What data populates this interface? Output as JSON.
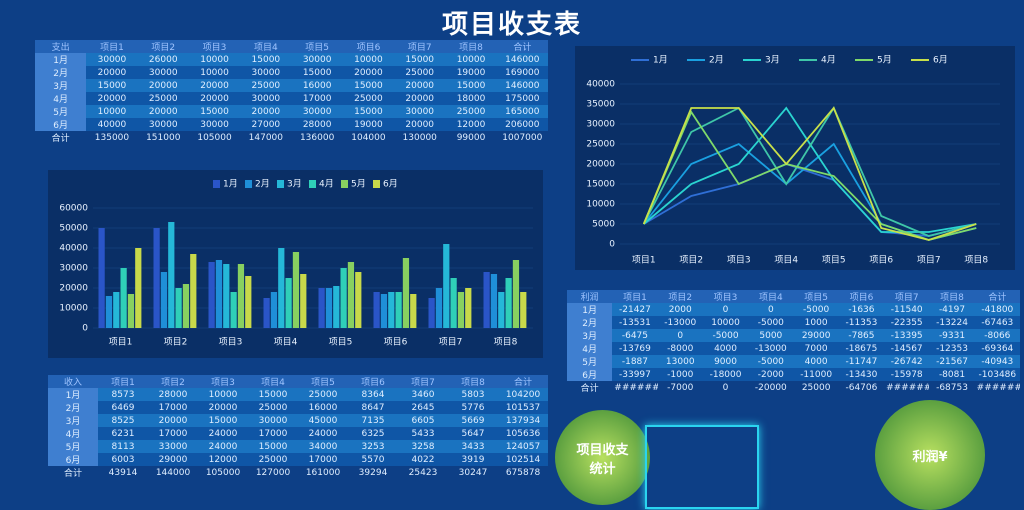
{
  "title": "项目收支表",
  "expense_table": {
    "header": [
      "支出",
      "项目1",
      "项目2",
      "项目3",
      "项目4",
      "项目5",
      "项目6",
      "项目7",
      "项目8",
      "合计"
    ],
    "rows": [
      [
        "1月",
        30000,
        26000,
        10000,
        15000,
        30000,
        10000,
        15000,
        10000,
        146000
      ],
      [
        "2月",
        20000,
        30000,
        10000,
        30000,
        15000,
        20000,
        25000,
        19000,
        169000
      ],
      [
        "3月",
        15000,
        20000,
        20000,
        25000,
        16000,
        15000,
        20000,
        15000,
        146000
      ],
      [
        "4月",
        20000,
        25000,
        20000,
        30000,
        17000,
        25000,
        20000,
        18000,
        175000
      ],
      [
        "5月",
        10000,
        20000,
        15000,
        20000,
        30000,
        15000,
        30000,
        25000,
        165000
      ],
      [
        "6月",
        40000,
        30000,
        30000,
        27000,
        28000,
        19000,
        20000,
        12000,
        206000
      ],
      [
        "合计",
        135000,
        151000,
        105000,
        147000,
        136000,
        104000,
        130000,
        99000,
        1007000
      ]
    ]
  },
  "income_table": {
    "header": [
      "收入",
      "项目1",
      "项目2",
      "项目3",
      "项目4",
      "项目5",
      "项目6",
      "项目7",
      "项目8",
      "合计"
    ],
    "rows": [
      [
        "1月",
        8573,
        28000,
        10000,
        15000,
        25000,
        8364,
        3460,
        5803,
        104200
      ],
      [
        "2月",
        6469,
        17000,
        20000,
        25000,
        16000,
        8647,
        2645,
        5776,
        101537
      ],
      [
        "3月",
        8525,
        20000,
        15000,
        30000,
        45000,
        7135,
        6605,
        5669,
        137934
      ],
      [
        "4月",
        6231,
        17000,
        24000,
        17000,
        24000,
        6325,
        5433,
        5647,
        105636
      ],
      [
        "5月",
        8113,
        33000,
        24000,
        15000,
        34000,
        3253,
        3258,
        3433,
        124057
      ],
      [
        "6月",
        6003,
        29000,
        12000,
        25000,
        17000,
        5570,
        4022,
        3919,
        102514
      ],
      [
        "合计",
        43914,
        144000,
        105000,
        127000,
        161000,
        39294,
        25423,
        30247,
        675878
      ]
    ]
  },
  "profit_table": {
    "header": [
      "利润",
      "项目1",
      "项目2",
      "项目3",
      "项目4",
      "项目5",
      "项目6",
      "项目7",
      "项目8",
      "合计"
    ],
    "rows": [
      [
        "1月",
        -21427,
        2000,
        0,
        0,
        -5000,
        -1636,
        -11540,
        -4197,
        -41800
      ],
      [
        "2月",
        -13531,
        -13000,
        10000,
        -5000,
        1000,
        -11353,
        -22355,
        -13224,
        -67463
      ],
      [
        "3月",
        -6475,
        0,
        -5000,
        5000,
        29000,
        -7865,
        -13395,
        -9331,
        -8066
      ],
      [
        "4月",
        -13769,
        -8000,
        4000,
        -13000,
        7000,
        -18675,
        -14567,
        -12353,
        -69364
      ],
      [
        "5月",
        -1887,
        13000,
        9000,
        -5000,
        4000,
        -11747,
        -26742,
        -21567,
        -40943
      ],
      [
        "6月",
        -33997,
        -1000,
        -18000,
        -2000,
        -11000,
        -13430,
        -15978,
        -8081,
        -103486
      ],
      [
        "合计",
        "#######",
        -7000,
        0,
        -20000,
        25000,
        -64706,
        "#######",
        -68753,
        "#######"
      ]
    ]
  },
  "chart_data": [
    {
      "type": "bar",
      "legend": "top",
      "ylim": [
        0,
        60000
      ],
      "yticks": [
        0,
        10000,
        20000,
        30000,
        40000,
        50000,
        60000
      ],
      "categories": [
        "项目1",
        "项目2",
        "项目3",
        "项目4",
        "项目5",
        "项目6",
        "项目7",
        "项目8"
      ],
      "series": [
        {
          "name": "1月",
          "color": "#2a55c8",
          "values": [
            50000,
            50000,
            33000,
            15000,
            20000,
            18000,
            15000,
            28000
          ]
        },
        {
          "name": "2月",
          "color": "#1f8fd8",
          "values": [
            16000,
            28000,
            34000,
            18000,
            20000,
            17000,
            20000,
            27000
          ]
        },
        {
          "name": "3月",
          "color": "#25b8d8",
          "values": [
            18000,
            53000,
            32000,
            40000,
            21000,
            18000,
            42000,
            18000
          ]
        },
        {
          "name": "4月",
          "color": "#2fcfb8",
          "values": [
            30000,
            20000,
            18000,
            25000,
            30000,
            18000,
            25000,
            25000
          ]
        },
        {
          "name": "5月",
          "color": "#88d060",
          "values": [
            17000,
            22000,
            32000,
            38000,
            33000,
            35000,
            18000,
            34000
          ]
        },
        {
          "name": "6月",
          "color": "#c8d94a",
          "values": [
            40000,
            37000,
            26000,
            27000,
            28000,
            17000,
            20000,
            18000
          ]
        }
      ]
    },
    {
      "type": "line",
      "legend": "top",
      "ylim": [
        0,
        40000
      ],
      "yticks": [
        0,
        5000,
        10000,
        15000,
        20000,
        25000,
        30000,
        35000,
        40000
      ],
      "categories": [
        "项目1",
        "项目2",
        "项目3",
        "项目4",
        "项目5",
        "项目6",
        "项目7",
        "项目8"
      ],
      "series": [
        {
          "name": "1月",
          "color": "#2f6fd6",
          "values": [
            5000,
            12000,
            15000,
            20000,
            16000,
            3000,
            2000,
            5000
          ]
        },
        {
          "name": "2月",
          "color": "#1aa0e0",
          "values": [
            5000,
            20000,
            25000,
            15000,
            25000,
            5000,
            1000,
            4000
          ]
        },
        {
          "name": "3月",
          "color": "#2ad4d0",
          "values": [
            5000,
            15000,
            20000,
            34000,
            16000,
            3000,
            3000,
            5000
          ]
        },
        {
          "name": "4月",
          "color": "#3fc6a8",
          "values": [
            5000,
            28000,
            34000,
            15000,
            34000,
            7000,
            2000,
            5000
          ]
        },
        {
          "name": "5月",
          "color": "#7fd96a",
          "values": [
            5000,
            33000,
            15000,
            20000,
            17000,
            5000,
            1000,
            4000
          ]
        },
        {
          "name": "6月",
          "color": "#c8e04a",
          "values": [
            5000,
            34000,
            34000,
            20000,
            34000,
            4000,
            1000,
            5000
          ]
        }
      ]
    }
  ],
  "badges": [
    "项目收支统计",
    "利润¥"
  ]
}
